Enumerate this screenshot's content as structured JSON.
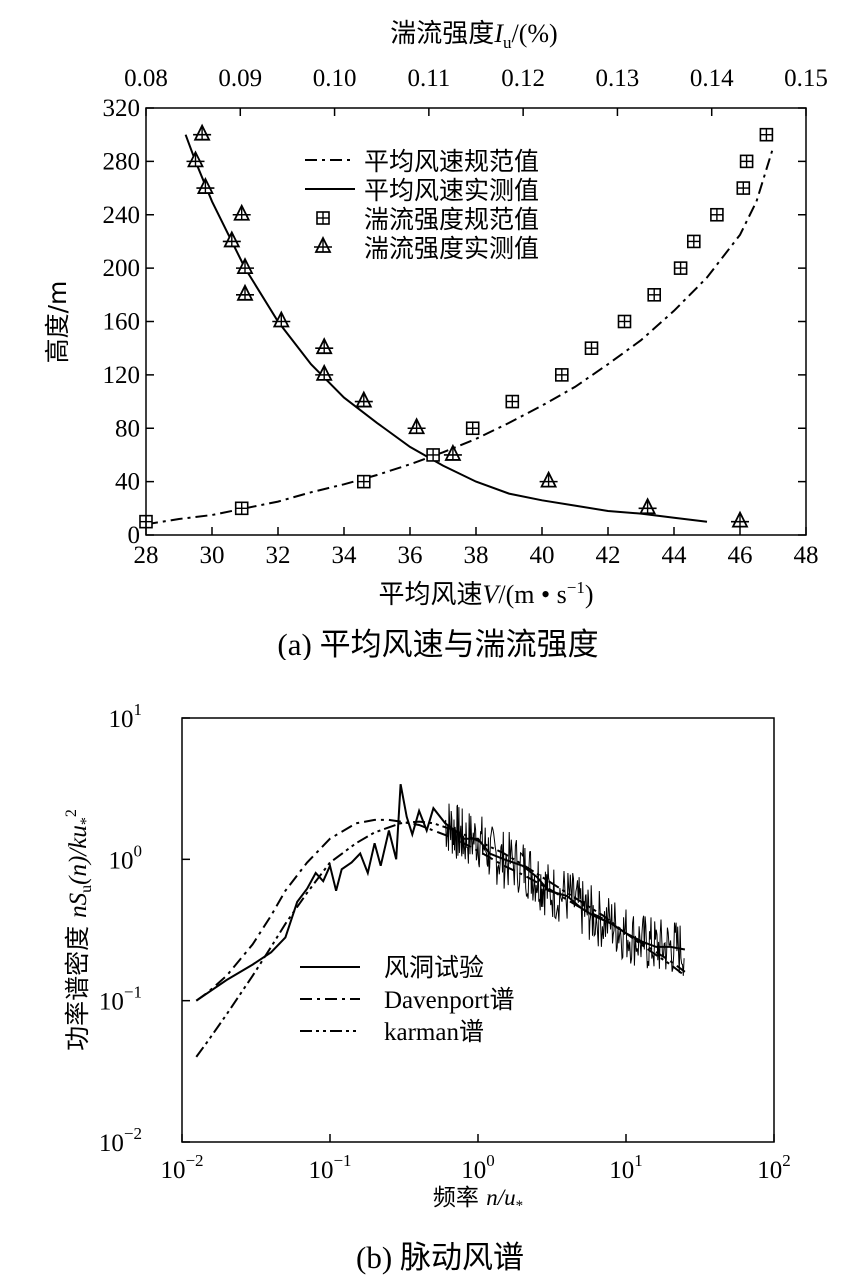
{
  "chart_data": [
    {
      "type": "line",
      "caption": "(a) 平均风速与湍流强度",
      "top_axis": {
        "title_main": "湍流强度",
        "title_var": "I",
        "title_sub": "u",
        "title_unit": "/(%)",
        "range": [
          0.08,
          0.15
        ],
        "ticks": [
          "0.08",
          "0.09",
          "0.10",
          "0.11",
          "0.12",
          "0.13",
          "0.14",
          "0.15"
        ],
        "tick_values": [
          0.08,
          0.09,
          0.1,
          0.11,
          0.12,
          0.13,
          0.14,
          0.15
        ]
      },
      "x_axis": {
        "title_main": "平均风速",
        "title_var": "V",
        "title_unit_pre": "/(m • s",
        "title_sup": "−1",
        "title_unit_post": ")",
        "range": [
          28,
          48
        ],
        "ticks": [
          "28",
          "30",
          "32",
          "34",
          "36",
          "38",
          "40",
          "42",
          "44",
          "46",
          "48"
        ],
        "tick_values": [
          28,
          30,
          32,
          34,
          36,
          38,
          40,
          42,
          44,
          46,
          48
        ]
      },
      "y_axis": {
        "title": "高度/m",
        "range": [
          0,
          320
        ],
        "ticks": [
          "0",
          "40",
          "80",
          "120",
          "160",
          "200",
          "240",
          "280",
          "320"
        ],
        "tick_values": [
          0,
          40,
          80,
          120,
          160,
          200,
          240,
          280,
          320
        ]
      },
      "legend": {
        "position": "top-center",
        "entries": [
          "平均风速规范值",
          "平均风速实测值",
          "湍流强度规范值",
          "湍流强度实测值"
        ]
      },
      "series": [
        {
          "name": "平均风速规范值",
          "style": "dash-dot",
          "x": [
            28,
            29,
            30,
            31,
            32,
            33,
            34,
            35,
            36,
            37,
            38,
            39,
            40,
            41,
            42,
            43,
            44,
            45,
            46,
            46.5,
            47
          ],
          "y": [
            8,
            12,
            15,
            20,
            25,
            32,
            38,
            45,
            53,
            62,
            72,
            84,
            97,
            111,
            128,
            146,
            168,
            193,
            225,
            250,
            290
          ]
        },
        {
          "name": "平均风速实测值",
          "style": "solid",
          "x": [
            29.2,
            29.5,
            30,
            30.5,
            31,
            32,
            33,
            34,
            35,
            36,
            37,
            38,
            39,
            40,
            41,
            42,
            43,
            44,
            45
          ],
          "y": [
            300,
            280,
            250,
            225,
            200,
            160,
            128,
            103,
            84,
            66,
            52,
            40,
            31,
            26,
            22,
            18,
            16,
            13,
            10
          ]
        },
        {
          "name": "湍流强度规范值",
          "style": "square-marker",
          "x": [
            28.0,
            30.9,
            34.6,
            36.7,
            37.9,
            39.1,
            40.6,
            41.5,
            42.5,
            43.4,
            44.2,
            44.6,
            45.3,
            46.1,
            46.2,
            46.8
          ],
          "y": [
            10,
            20,
            40,
            60,
            80,
            100,
            120,
            140,
            160,
            180,
            200,
            220,
            240,
            260,
            280,
            300
          ]
        },
        {
          "name": "湍流强度实测值",
          "style": "triangle-marker",
          "x": [
            46.0,
            43.2,
            40.2,
            37.3,
            36.2,
            34.6,
            33.4,
            33.4,
            32.1,
            31.0,
            31.0,
            30.9,
            30.6,
            29.8,
            29.5,
            29.7
          ],
          "y": [
            10,
            20,
            40,
            60,
            80,
            100,
            120,
            140,
            160,
            180,
            200,
            240,
            220,
            260,
            280,
            300
          ]
        }
      ]
    },
    {
      "type": "line",
      "caption": "(b) 脉动风谱",
      "x_axis": {
        "title_main": "频率 ",
        "title_var": "n/u",
        "title_sub": "*",
        "scale": "log",
        "range": [
          0.01,
          100
        ],
        "ticks": [
          {
            "base": "10",
            "exp": "−2"
          },
          {
            "base": "10",
            "exp": "−1"
          },
          {
            "base": "10",
            "exp": "0"
          },
          {
            "base": "10",
            "exp": "1"
          },
          {
            "base": "10",
            "exp": "2"
          }
        ]
      },
      "y_axis": {
        "title_main": "功率谱密度 ",
        "title_var1": "nS",
        "title_sub1": "u",
        "title_mid": "(n)/ku",
        "title_sub2": "*",
        "title_sup": "2",
        "scale": "log",
        "range": [
          0.01,
          10
        ],
        "ticks": [
          {
            "base": "10",
            "exp": "−2"
          },
          {
            "base": "10",
            "exp": "−1"
          },
          {
            "base": "10",
            "exp": "0"
          },
          {
            "base": "10",
            "exp": "1"
          }
        ]
      },
      "legend": {
        "position": "lower-left",
        "entries": [
          "风洞试验",
          "Davenport谱",
          "karman谱"
        ]
      },
      "series": [
        {
          "name": "风洞试验",
          "style": "solid",
          "x": [
            0.0125,
            0.02,
            0.03,
            0.04,
            0.05,
            0.06,
            0.07,
            0.08,
            0.09,
            0.1,
            0.11,
            0.12,
            0.14,
            0.16,
            0.18,
            0.2,
            0.22,
            0.25,
            0.28,
            0.3,
            0.33,
            0.36,
            0.4,
            0.45,
            0.5,
            0.6,
            0.7,
            0.8,
            1.0,
            1.2,
            1.5,
            2,
            2.5,
            3,
            4,
            5,
            6,
            8,
            10,
            13,
            16,
            20,
            25
          ],
          "y": [
            0.1,
            0.14,
            0.18,
            0.22,
            0.28,
            0.5,
            0.62,
            0.8,
            0.7,
            0.9,
            0.6,
            0.85,
            0.95,
            1.1,
            0.8,
            1.3,
            0.9,
            1.6,
            1.0,
            3.4,
            2.0,
            1.5,
            2.2,
            1.6,
            2.3,
            1.8,
            1.6,
            1.4,
            1.4,
            1.1,
            1.0,
            0.9,
            0.75,
            0.6,
            0.55,
            0.45,
            0.4,
            0.35,
            0.3,
            0.26,
            0.24,
            0.24,
            0.23
          ]
        },
        {
          "name": "Davenport谱",
          "style": "dash-dot",
          "x": [
            0.0125,
            0.015,
            0.02,
            0.03,
            0.04,
            0.05,
            0.07,
            0.1,
            0.15,
            0.2,
            0.25,
            0.3,
            0.4,
            0.5,
            0.7,
            1,
            1.5,
            2,
            3,
            5,
            7,
            10,
            15,
            20,
            25
          ],
          "y": [
            0.1,
            0.115,
            0.15,
            0.25,
            0.4,
            0.6,
            0.95,
            1.4,
            1.8,
            1.9,
            1.9,
            1.85,
            1.75,
            1.6,
            1.4,
            1.15,
            0.9,
            0.78,
            0.62,
            0.45,
            0.38,
            0.3,
            0.23,
            0.19,
            0.16
          ]
        },
        {
          "name": "karman谱",
          "style": "dash-dot-dot",
          "x": [
            0.0125,
            0.015,
            0.02,
            0.03,
            0.04,
            0.05,
            0.07,
            0.1,
            0.15,
            0.2,
            0.3,
            0.4,
            0.5,
            0.7,
            1,
            1.5,
            2,
            3,
            5,
            7,
            10,
            15,
            20,
            25
          ],
          "y": [
            0.04,
            0.052,
            0.08,
            0.15,
            0.24,
            0.35,
            0.58,
            0.95,
            1.3,
            1.55,
            1.8,
            1.85,
            1.8,
            1.6,
            1.35,
            1.1,
            0.92,
            0.7,
            0.5,
            0.4,
            0.3,
            0.22,
            0.18,
            0.15
          ]
        }
      ]
    }
  ]
}
